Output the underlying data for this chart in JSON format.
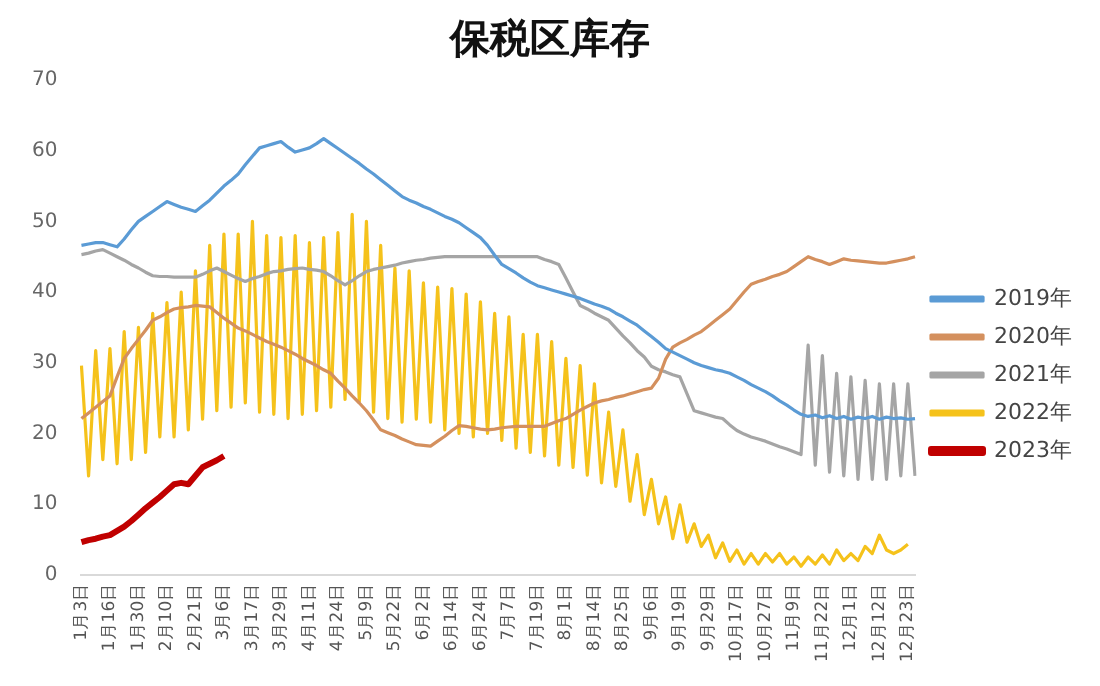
{
  "chart_data": {
    "type": "line",
    "title": "保税区库存",
    "categories": [
      "1月3日",
      null,
      null,
      null,
      "1月16日",
      null,
      null,
      null,
      "1月30日",
      null,
      null,
      null,
      "2月10日",
      null,
      null,
      null,
      "2月21日",
      null,
      null,
      null,
      "3月6日",
      null,
      null,
      null,
      "3月17日",
      null,
      null,
      null,
      "3月29日",
      null,
      null,
      null,
      "4月11日",
      null,
      null,
      null,
      "4月24日",
      null,
      null,
      null,
      "5月9日",
      null,
      null,
      null,
      "5月22日",
      null,
      null,
      null,
      "6月2日",
      null,
      null,
      null,
      "6月14日",
      null,
      null,
      null,
      "6月24日",
      null,
      null,
      null,
      "7月7日",
      null,
      null,
      null,
      "7月19日",
      null,
      null,
      null,
      "8月1日",
      null,
      null,
      null,
      "8月14日",
      null,
      null,
      null,
      "8月25日",
      null,
      null,
      null,
      "9月6日",
      null,
      null,
      null,
      "9月19日",
      null,
      null,
      null,
      "9月29日",
      null,
      null,
      null,
      "10月17日",
      null,
      null,
      null,
      "10月27日",
      null,
      null,
      null,
      "11月9日",
      null,
      null,
      null,
      "11月22日",
      null,
      null,
      null,
      "12月1日",
      null,
      null,
      null,
      "12月12日",
      null,
      null,
      null,
      "12月23日",
      null
    ],
    "series": [
      {
        "name": "2019年",
        "color": "#5b9bd5",
        "values": [
          46.6,
          46.8,
          47,
          47,
          46.7,
          46.4,
          47.5,
          48.8,
          50,
          50.7,
          51.4,
          52.1,
          52.8,
          52.4,
          52,
          51.7,
          51.4,
          52.2,
          53,
          54,
          55,
          55.8,
          56.7,
          58,
          59.2,
          60.4,
          60.7,
          61,
          61.3,
          60.5,
          59.8,
          60.1,
          60.4,
          61,
          61.7,
          61,
          60.3,
          59.6,
          58.9,
          58.2,
          57.4,
          56.7,
          55.9,
          55.1,
          54.3,
          53.5,
          53,
          52.6,
          52.1,
          51.7,
          51.2,
          50.7,
          50.3,
          49.8,
          49.1,
          48.4,
          47.7,
          46.6,
          45.2,
          43.9,
          43.3,
          42.7,
          42,
          41.4,
          40.9,
          40.6,
          40.3,
          40,
          39.7,
          39.4,
          39.1,
          38.7,
          38.3,
          38,
          37.6,
          37,
          36.5,
          35.9,
          35.3,
          34.5,
          33.7,
          32.9,
          32,
          31.5,
          31,
          30.5,
          30,
          29.6,
          29.3,
          29,
          28.8,
          28.5,
          28,
          27.5,
          26.9,
          26.4,
          25.9,
          25.3,
          24.6,
          24,
          23.3,
          22.7,
          22.4,
          22.6,
          22.2,
          22.5,
          22.1,
          22.4,
          22,
          22.3,
          22.1,
          22.4,
          22,
          22.3,
          22.1,
          22.2,
          22,
          22.1
        ]
      },
      {
        "name": "2020年",
        "color": "#d4905e",
        "values": [
          22.1,
          22.9,
          23.7,
          24.5,
          25.3,
          28,
          30.6,
          32,
          33.3,
          34.6,
          36,
          36.5,
          37.1,
          37.6,
          37.8,
          37.9,
          38.1,
          38,
          37.9,
          37.1,
          36.3,
          35.6,
          34.9,
          34.5,
          34,
          33.5,
          33,
          32.6,
          32.2,
          31.7,
          31.2,
          30.6,
          30.1,
          29.6,
          29,
          28.5,
          27.4,
          26.4,
          25.3,
          24.3,
          23.2,
          21.9,
          20.5,
          20.1,
          19.7,
          19.2,
          18.8,
          18.4,
          18.3,
          18.2,
          18.9,
          19.6,
          20.4,
          21.1,
          21,
          20.8,
          20.6,
          20.5,
          20.6,
          20.8,
          20.9,
          21,
          21,
          21,
          21,
          21,
          21.4,
          21.8,
          22.1,
          22.7,
          23.3,
          23.8,
          24.3,
          24.6,
          24.8,
          25.1,
          25.3,
          25.6,
          25.9,
          26.2,
          26.4,
          27.8,
          30.5,
          32.2,
          32.8,
          33.3,
          33.9,
          34.4,
          35.2,
          36,
          36.8,
          37.6,
          38.8,
          40,
          41.1,
          41.5,
          41.8,
          42.2,
          42.5,
          42.9,
          43.6,
          44.3,
          45,
          44.6,
          44.3,
          43.9,
          44.3,
          44.7,
          44.5,
          44.4,
          44.3,
          44.2,
          44.1,
          44.1,
          44.3,
          44.5,
          44.7,
          45
        ]
      },
      {
        "name": "2021年",
        "color": "#a5a5a5",
        "values": [
          45.3,
          45.5,
          45.8,
          46,
          45.5,
          45,
          44.5,
          43.9,
          43.4,
          42.8,
          42.3,
          42.2,
          42.2,
          42.1,
          42.1,
          42.1,
          42.1,
          42.5,
          43,
          43.4,
          42.9,
          42.4,
          41.9,
          41.5,
          41.9,
          42.2,
          42.6,
          42.9,
          43,
          43.2,
          43.3,
          43.4,
          43.2,
          43.1,
          42.9,
          42.3,
          41.6,
          41,
          41.6,
          42.3,
          42.9,
          43.2,
          43.4,
          43.6,
          43.8,
          44.1,
          44.3,
          44.5,
          44.6,
          44.8,
          44.9,
          45,
          45,
          45,
          45,
          45,
          45,
          45,
          45,
          45,
          45,
          45,
          45,
          45,
          45,
          44.6,
          44.3,
          43.9,
          42,
          40,
          38.1,
          37.6,
          37,
          36.5,
          36,
          34.9,
          33.8,
          32.8,
          31.7,
          30.8,
          29.5,
          29,
          28.7,
          28.3,
          28,
          25.6,
          23.2,
          22.9,
          22.6,
          22.3,
          22.1,
          21.2,
          20.4,
          19.9,
          19.5,
          19.2,
          18.9,
          18.5,
          18.1,
          17.8,
          17.4,
          17,
          32.5,
          15.5,
          31,
          14.5,
          28.5,
          14,
          28,
          13.5,
          27.5,
          13.5,
          27,
          13.5,
          27,
          14,
          27,
          14
        ]
      },
      {
        "name": "2022年",
        "color": "#f5c21b",
        "values": [
          29.6,
          14,
          31.7,
          16.3,
          32,
          15.7,
          34.4,
          16.3,
          35,
          17.3,
          37,
          19.5,
          38.5,
          19.5,
          40,
          20.5,
          43,
          22,
          46.6,
          23.2,
          48.2,
          23.7,
          48.2,
          24.3,
          50,
          23,
          48,
          22.7,
          47.7,
          22.1,
          48,
          22.7,
          47,
          23.2,
          47.7,
          23.7,
          48.4,
          24.8,
          51,
          24.5,
          50,
          23,
          46.6,
          22.1,
          43.4,
          21.6,
          43,
          22,
          41.3,
          21.6,
          40.7,
          20.5,
          40.5,
          20,
          39.7,
          19.5,
          38.6,
          20,
          37,
          19,
          36.5,
          17.9,
          34,
          17.3,
          34,
          16.8,
          33,
          15.5,
          30.6,
          15.2,
          29.6,
          14.1,
          27,
          13,
          23,
          12.5,
          20.5,
          10.4,
          17,
          8.5,
          13.5,
          7.2,
          11,
          5.1,
          9.9,
          4.6,
          7.2,
          4,
          5.6,
          2.4,
          4.5,
          1.9,
          3.5,
          1.5,
          3,
          1.5,
          3,
          1.8,
          3,
          1.5,
          2.5,
          1.2,
          2.5,
          1.5,
          2.8,
          1.5,
          3.5,
          2,
          3,
          2,
          4,
          3,
          5.6,
          3.5,
          3,
          3.5,
          4.3,
          null
        ]
      },
      {
        "name": "2023年",
        "color": "#c00000",
        "values": [
          4.6,
          4.9,
          5.1,
          5.4,
          5.6,
          6.2,
          6.8,
          7.6,
          8.5,
          9.4,
          10.2,
          11,
          11.9,
          12.8,
          13,
          12.8,
          14,
          15.2,
          15.7,
          16.2,
          16.8,
          null,
          null,
          null,
          null,
          null,
          null,
          null,
          null,
          null,
          null,
          null,
          null,
          null,
          null,
          null,
          null,
          null,
          null,
          null,
          null,
          null,
          null,
          null,
          null,
          null,
          null,
          null,
          null,
          null,
          null,
          null,
          null,
          null,
          null,
          null,
          null,
          null,
          null,
          null,
          null,
          null,
          null,
          null,
          null,
          null,
          null,
          null,
          null,
          null,
          null,
          null,
          null,
          null,
          null,
          null,
          null,
          null,
          null,
          null,
          null,
          null,
          null,
          null,
          null,
          null,
          null,
          null,
          null,
          null,
          null,
          null,
          null,
          null,
          null,
          null,
          null,
          null,
          null,
          null,
          null,
          null,
          null,
          null,
          null,
          null,
          null,
          null,
          null,
          null,
          null,
          null,
          null,
          null,
          null,
          null,
          null,
          null
        ]
      }
    ],
    "ylim": [
      0,
      70
    ],
    "yticks": [
      0,
      10,
      20,
      30,
      40,
      50,
      60,
      70
    ],
    "grid": false,
    "legend": "right",
    "marker": "none",
    "line_style": "solid"
  }
}
